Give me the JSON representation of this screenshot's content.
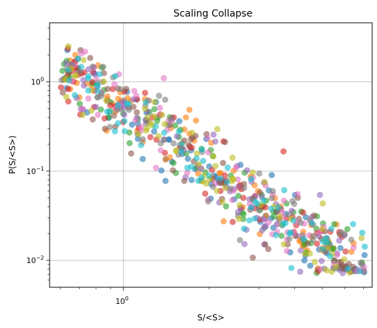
{
  "chart_data": {
    "type": "scatter",
    "title": "Scaling Collapse",
    "xlabel": "S/<S>",
    "ylabel": "P(S/<S>)",
    "xscale": "log",
    "yscale": "log",
    "xlim": [
      0.55,
      7.5
    ],
    "ylim": [
      0.005,
      4.6
    ],
    "grid": true,
    "x_major_ticks": [
      {
        "value": 1,
        "base": "10",
        "exp": "0"
      }
    ],
    "y_major_ticks": [
      {
        "value": 0.01,
        "base": "10",
        "exp": "−2"
      },
      {
        "value": 0.1,
        "base": "10",
        "exp": "−1"
      },
      {
        "value": 1,
        "base": "10",
        "exp": "0"
      }
    ],
    "x_minor_ticks": [
      0.6,
      0.7,
      0.8,
      0.9,
      2,
      3,
      4,
      5,
      6,
      7
    ],
    "y_minor_ticks": [
      0.006,
      0.007,
      0.008,
      0.009,
      0.02,
      0.03,
      0.04,
      0.05,
      0.06,
      0.07,
      0.08,
      0.09,
      0.2,
      0.3,
      0.4,
      0.5,
      0.6,
      0.7,
      0.8,
      0.9,
      2,
      3,
      4
    ],
    "marker_alpha": 0.6,
    "series_colors": [
      "#1f77b4",
      "#ff7f0e",
      "#2ca02c",
      "#d62728",
      "#9467bd",
      "#8c564b",
      "#e377c2",
      "#7f7f7f",
      "#bcbd22",
      "#17becf"
    ],
    "trend": {
      "amplitude": 0.5,
      "exponent": -2.2,
      "floor": 0.0085,
      "log_scatter_sd": 0.2
    },
    "points_per_series": 70
  }
}
